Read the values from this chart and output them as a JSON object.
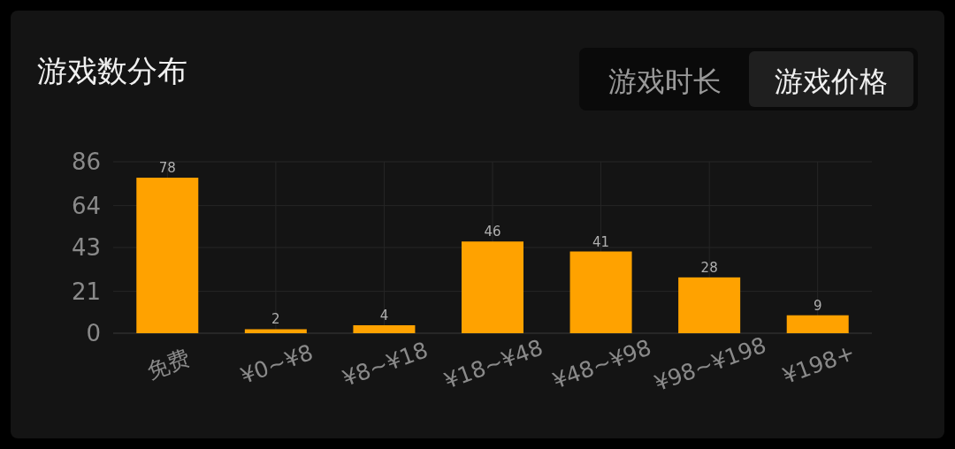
{
  "chart_data": {
    "type": "bar",
    "title": "游戏数分布",
    "categories": [
      "免费",
      "¥0~¥8",
      "¥8~¥18",
      "¥18~¥48",
      "¥48~¥98",
      "¥98~¥198",
      "¥198+"
    ],
    "values": [
      78,
      2,
      4,
      46,
      41,
      28,
      9
    ],
    "color": "#ffa200",
    "ylim": [
      0,
      86
    ],
    "yticks": [
      0,
      21,
      43,
      64,
      86
    ],
    "grid": true,
    "data_labels": true,
    "annotations": [
      "游戏时长",
      "游戏价格"
    ]
  }
}
